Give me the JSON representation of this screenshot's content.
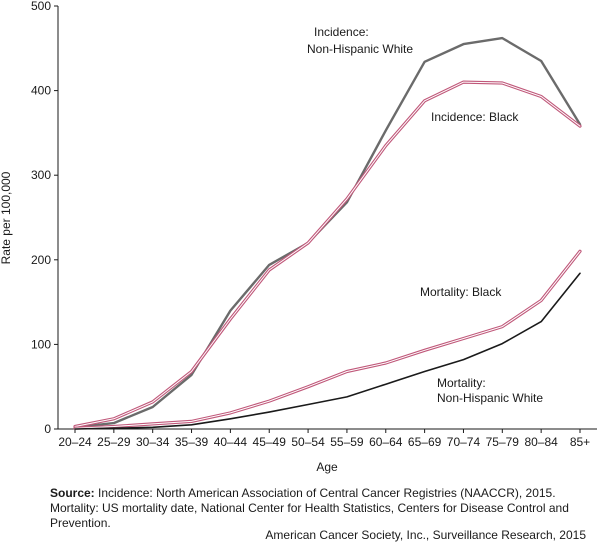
{
  "chart_data": {
    "type": "line",
    "categories": [
      "20–24",
      "25–29",
      "30–34",
      "35–39",
      "40–44",
      "45–49",
      "50–54",
      "55–59",
      "60–64",
      "65–69",
      "70–74",
      "75–79",
      "80–84",
      "85+"
    ],
    "ylim": [
      0,
      500
    ],
    "yticks": [
      0,
      100,
      200,
      300,
      400,
      500
    ],
    "ylabel": "Rate per 100,000",
    "xlabel": "Age",
    "series": [
      {
        "name": "Incidence: Non-Hispanic White",
        "style": "gray",
        "values": [
          2,
          7,
          26,
          64,
          140,
          194,
          220,
          268,
          353,
          434,
          455,
          462,
          435,
          360
        ]
      },
      {
        "name": "Incidence: Black",
        "style": "pink",
        "values": [
          3,
          12,
          32,
          68,
          130,
          188,
          220,
          272,
          335,
          388,
          410,
          409,
          393,
          358
        ]
      },
      {
        "name": "Mortality: Black",
        "style": "pink",
        "values": [
          1,
          3,
          6,
          9,
          19,
          33,
          50,
          68,
          78,
          93,
          107,
          121,
          152,
          210
        ]
      },
      {
        "name": "Mortality: Non-Hispanic White",
        "style": "black",
        "values": [
          0,
          1,
          2,
          5,
          12,
          20,
          29,
          38,
          53,
          68,
          82,
          101,
          127,
          184
        ]
      }
    ],
    "annotations": {
      "inc_white_line1": "Incidence:",
      "inc_white_line2": "Non-Hispanic White",
      "inc_black": "Incidence: Black",
      "mort_black": "Mortality: Black",
      "mort_white_line1": "Mortality:",
      "mort_white_line2": "Non-Hispanic White"
    }
  },
  "colors": {
    "gray": "#6b6b6b",
    "pink": "#c0587a",
    "black": "#1a1a1a"
  },
  "source": {
    "label": "Source:",
    "text": "Incidence: North American Association of Central Cancer Registries (NAACCR), 2015. Mortality: US mortality date, National Center for Health Statistics, Centers for Disease Control and Prevention."
  },
  "credit": "American Cancer Society, Inc., Surveillance Research, 2015"
}
